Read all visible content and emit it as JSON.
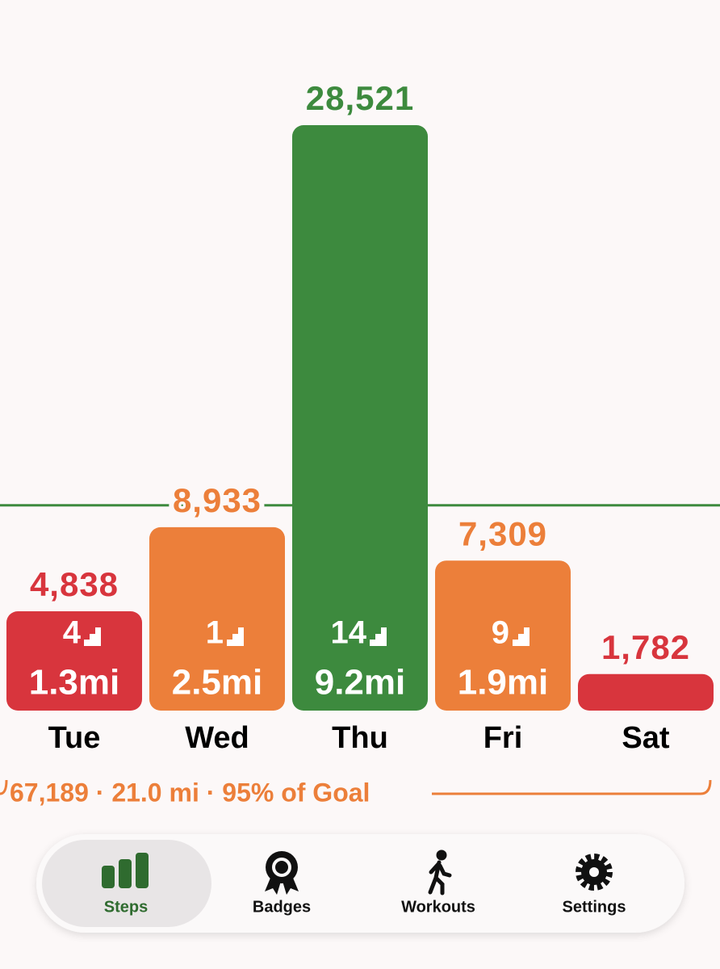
{
  "chart_data": {
    "type": "bar",
    "categories": [
      "Tue",
      "Wed",
      "Thu",
      "Fri",
      "Sat"
    ],
    "values": [
      4838,
      8933,
      28521,
      7309,
      1782
    ],
    "value_labels": [
      "4,838",
      "8,933",
      "28,521",
      "7,309",
      "1,782"
    ],
    "colors": [
      "#d8353d",
      "#ec7f3a",
      "#3d8a3e",
      "#ec7f3a",
      "#d8353d"
    ],
    "ylim": [
      0,
      28600
    ],
    "goal": 10000,
    "goal_color": "#3d8a3e",
    "floors": [
      4,
      1,
      14,
      9,
      null
    ],
    "distance_labels": [
      "1.3mi",
      "2.5mi",
      "9.2mi",
      "1.9mi",
      null
    ],
    "summary": "67,189 · 21.0 mi · 95% of Goal"
  },
  "tab_bar": {
    "tabs": [
      {
        "label": "Steps",
        "selected": true
      },
      {
        "label": "Badges",
        "selected": false
      },
      {
        "label": "Workouts",
        "selected": false
      },
      {
        "label": "Settings",
        "selected": false
      }
    ]
  }
}
